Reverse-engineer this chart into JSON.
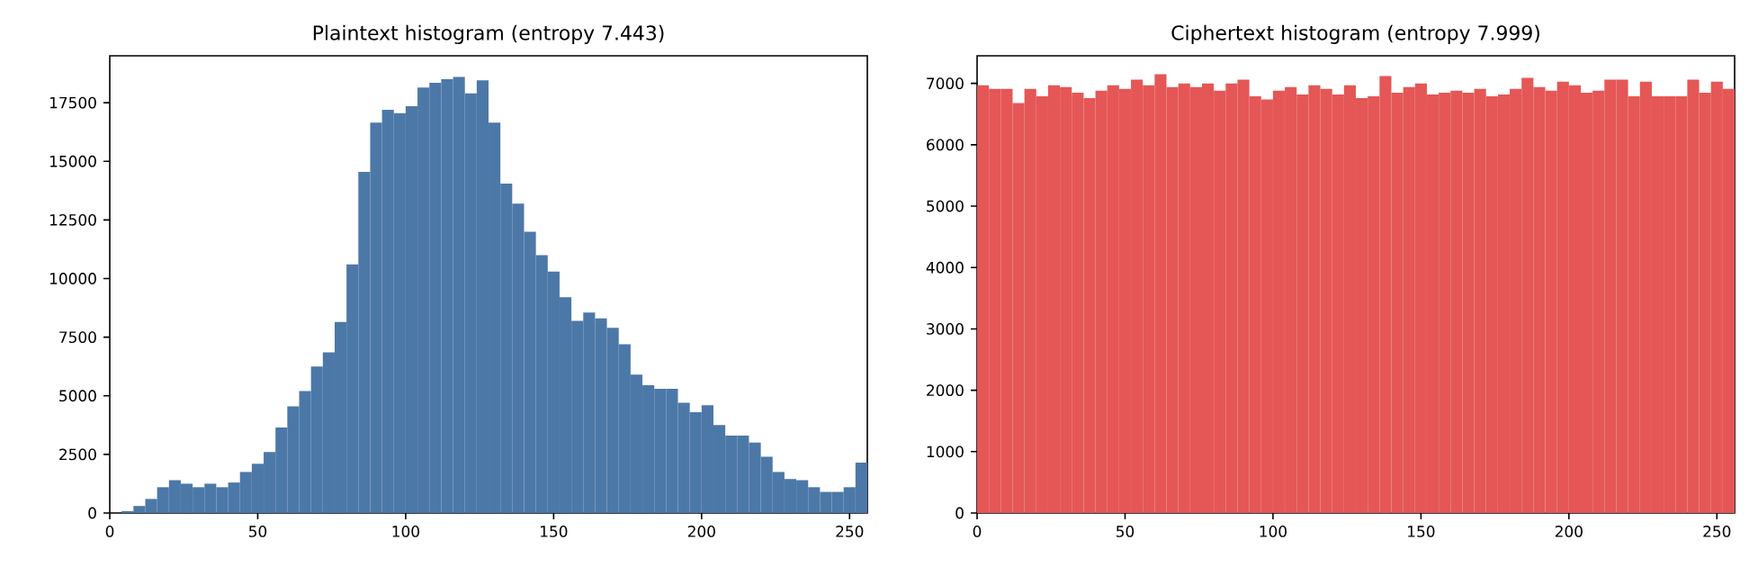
{
  "chart_data": [
    {
      "type": "histogram",
      "title": "Plaintext histogram (entropy 7.443)",
      "color": "#4c78a8",
      "bins": [
        0,
        4,
        8,
        12,
        16,
        20,
        24,
        28,
        32,
        36,
        40,
        44,
        48,
        52,
        56,
        60,
        64,
        68,
        72,
        76,
        80,
        84,
        88,
        92,
        96,
        100,
        104,
        108,
        112,
        116,
        120,
        124,
        128,
        132,
        136,
        140,
        144,
        148,
        152,
        156,
        160,
        164,
        168,
        172,
        176,
        180,
        184,
        188,
        192,
        196,
        200,
        204,
        208,
        212,
        216,
        220,
        224,
        228,
        232,
        236,
        240,
        244,
        248,
        252,
        256
      ],
      "values": [
        0,
        80,
        300,
        600,
        1100,
        1400,
        1250,
        1100,
        1250,
        1100,
        1300,
        1750,
        2100,
        2600,
        3650,
        4550,
        5200,
        6250,
        6850,
        8150,
        10600,
        14550,
        16650,
        17200,
        17050,
        17350,
        18150,
        18350,
        18500,
        18600,
        17900,
        18450,
        16650,
        14050,
        13200,
        12000,
        11000,
        10300,
        9200,
        8200,
        8550,
        8300,
        7900,
        7200,
        5900,
        5450,
        5300,
        5300,
        4700,
        4300,
        4600,
        3750,
        3300,
        3300,
        3000,
        2400,
        1750,
        1450,
        1400,
        1100,
        900,
        900,
        1100,
        2150
      ],
      "xlim": [
        0,
        256
      ],
      "ylim": [
        0,
        19500
      ],
      "xticks": [
        0,
        50,
        100,
        150,
        200,
        250
      ],
      "yticks": [
        0,
        2500,
        5000,
        7500,
        10000,
        12500,
        15000,
        17500
      ],
      "grid": false
    },
    {
      "type": "histogram",
      "title": "Ciphertext histogram (entropy 7.999)",
      "color": "#e45756",
      "bins": [
        0,
        4,
        8,
        12,
        16,
        20,
        24,
        28,
        32,
        36,
        40,
        44,
        48,
        52,
        56,
        60,
        64,
        68,
        72,
        76,
        80,
        84,
        88,
        92,
        96,
        100,
        104,
        108,
        112,
        116,
        120,
        124,
        128,
        132,
        136,
        140,
        144,
        148,
        152,
        156,
        160,
        164,
        168,
        172,
        176,
        180,
        184,
        188,
        192,
        196,
        200,
        204,
        208,
        212,
        216,
        220,
        224,
        228,
        232,
        236,
        240,
        244,
        248,
        252,
        256
      ],
      "values": [
        6970,
        6910,
        6910,
        6680,
        6910,
        6790,
        6970,
        6940,
        6850,
        6760,
        6880,
        6970,
        6910,
        7060,
        6970,
        7150,
        6940,
        7000,
        6940,
        7000,
        6880,
        7000,
        7060,
        6790,
        6740,
        6880,
        6940,
        6820,
        6970,
        6910,
        6820,
        6970,
        6760,
        6790,
        7120,
        6850,
        6940,
        7000,
        6820,
        6850,
        6880,
        6850,
        6910,
        6790,
        6820,
        6910,
        7090,
        6940,
        6880,
        7030,
        6970,
        6850,
        6880,
        7060,
        7060,
        6790,
        7030,
        6790,
        6790,
        6790,
        7060,
        6850,
        7030,
        6910
      ],
      "xlim": [
        0,
        256
      ],
      "ylim": [
        0,
        7450
      ],
      "xticks": [
        0,
        50,
        100,
        150,
        200,
        250
      ],
      "yticks": [
        0,
        1000,
        2000,
        3000,
        4000,
        5000,
        6000,
        7000
      ],
      "grid": false
    }
  ]
}
